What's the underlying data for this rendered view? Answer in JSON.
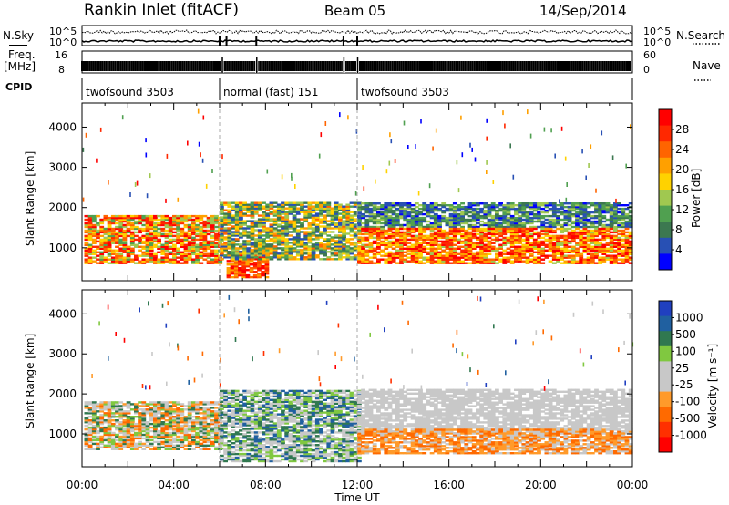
{
  "header": {
    "title": "Rankin Inlet (fitACF)",
    "beam": "Beam 05",
    "date": "14/Sep/2014"
  },
  "left_labels": {
    "nsky": "N.Sky",
    "freq": "Freq.",
    "mhz": "[MHz]",
    "cpid": "CPID"
  },
  "right_labels": {
    "nsearch": "N.Search",
    "nave": "Nave"
  },
  "nsky_ticks": {
    "top": "10^5",
    "bottom": "10^0"
  },
  "freq_ticks": {
    "top": "16",
    "bottom": "8"
  },
  "nave_ticks": {
    "top": "60",
    "bottom": "0"
  },
  "cpid_segments": [
    {
      "label": "twofsound 3503",
      "start_hour": 0,
      "end_hour": 6
    },
    {
      "label": "normal (fast) 151",
      "start_hour": 6,
      "end_hour": 12
    },
    {
      "label": "twofsound 3503",
      "start_hour": 12,
      "end_hour": 24
    }
  ],
  "colors": {
    "power": [
      "#0000ff",
      "#2850b4",
      "#3c7850",
      "#50a050",
      "#a0c850",
      "#ffd200",
      "#ffa000",
      "#ff6400",
      "#ff2800",
      "#ff0000"
    ],
    "velocity": [
      "#2040c0",
      "#2060a0",
      "#307850",
      "#80c840",
      "#c8c8c8",
      "#c8c8c8",
      "#ff9a2a",
      "#ff6a00",
      "#ff3000",
      "#ff0000"
    ]
  },
  "chart_data": [
    {
      "type": "heatmap",
      "name": "Power",
      "xlabel": "",
      "ylabel": "Slant Range [km]",
      "x_ticks": [
        "00:00",
        "04:00",
        "08:00",
        "12:00",
        "16:00",
        "20:00",
        "00:00"
      ],
      "xlim_hours": [
        0,
        24
      ],
      "ylim": [
        180,
        4600
      ],
      "y_ticks": [
        1000,
        2000,
        3000,
        4000
      ],
      "colorbar": {
        "label": "Power [dB]",
        "ticks": [
          "28",
          "24",
          "20",
          "16",
          "12",
          "8",
          "4"
        ],
        "range": [
          0,
          30
        ]
      },
      "echo_regions": [
        {
          "t0": 0.1,
          "t1": 6.0,
          "r0": 600,
          "r1": 1800,
          "vmin": 10,
          "vmax": 30
        },
        {
          "t0": 6.3,
          "t1": 8.0,
          "r0": 250,
          "r1": 900,
          "vmin": 18,
          "vmax": 30
        },
        {
          "t0": 6.0,
          "t1": 12.0,
          "r0": 700,
          "r1": 2100,
          "vmin": 4,
          "vmax": 22
        },
        {
          "t0": 12.0,
          "t1": 24.0,
          "r0": 1500,
          "r1": 2100,
          "vmin": 2,
          "vmax": 14
        },
        {
          "t0": 12.0,
          "t1": 24.0,
          "r0": 600,
          "r1": 1500,
          "vmin": 14,
          "vmax": 30
        }
      ]
    },
    {
      "type": "heatmap",
      "name": "Velocity",
      "xlabel": "Time UT",
      "ylabel": "Slant Range [km]",
      "x_ticks": [
        "00:00",
        "04:00",
        "08:00",
        "12:00",
        "16:00",
        "20:00",
        "00:00"
      ],
      "xlim_hours": [
        0,
        24
      ],
      "ylim": [
        180,
        4600
      ],
      "y_ticks": [
        1000,
        2000,
        3000,
        4000
      ],
      "colorbar": {
        "label": "Velocity [m s⁻¹]",
        "ticks": [
          "1000",
          "500",
          "100",
          "25",
          "-25",
          "-100",
          "-500",
          "-1000"
        ],
        "range": [
          -1000,
          1000
        ]
      },
      "echo_regions": [
        {
          "t0": 0.1,
          "t1": 6.0,
          "r0": 600,
          "r1": 1800,
          "vmin": -600,
          "vmax": 600
        },
        {
          "t0": 6.0,
          "t1": 12.0,
          "r0": 300,
          "r1": 2100,
          "vmin": -200,
          "vmax": 800
        },
        {
          "t0": 12.0,
          "t1": 24.0,
          "r0": 1000,
          "r1": 2100,
          "vmin": -20,
          "vmax": 20
        },
        {
          "t0": 12.0,
          "t1": 24.0,
          "r0": 500,
          "r1": 1100,
          "vmin": -600,
          "vmax": -50
        }
      ]
    }
  ]
}
